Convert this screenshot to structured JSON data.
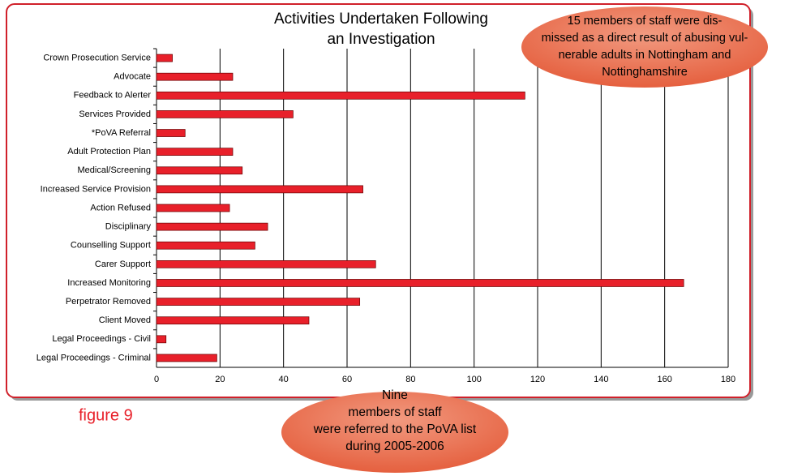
{
  "chart_data": {
    "type": "bar",
    "orientation": "horizontal",
    "title": [
      "Activities Undertaken Following",
      "an Investigation"
    ],
    "categories": [
      "Crown Prosecution Service",
      "Advocate",
      "Feedback to Alerter",
      "Services Provided",
      "*PoVA Referral",
      "Adult Protection Plan",
      "Medical/Screening",
      "Increased Service Provision",
      "Action Refused",
      "Disciplinary",
      "Counselling Support",
      "Carer Support",
      "Increased Monitoring",
      "Perpetrator Removed",
      "Client Moved",
      "Legal Proceedings - Civil",
      "Legal Proceedings - Criminal"
    ],
    "values": [
      5,
      24,
      116,
      43,
      9,
      24,
      27,
      65,
      23,
      35,
      31,
      69,
      166,
      64,
      48,
      3,
      19
    ],
    "color": "#e8202a",
    "xlim": [
      0,
      180
    ],
    "xticks": [
      0,
      20,
      40,
      60,
      80,
      100,
      120,
      140,
      160,
      180
    ],
    "grid": true,
    "annotations": [
      {
        "lines": [
          "15 members of staff were dis-",
          "missed as a direct result of abusing vul-",
          "nerable adults in Nottingham and",
          "Nottinghamshire"
        ]
      },
      {
        "lines": [
          "Nine",
          "members of staff",
          "were referred to the PoVA list",
          "during 2005-2006"
        ]
      }
    ],
    "caption": "figure 9"
  }
}
